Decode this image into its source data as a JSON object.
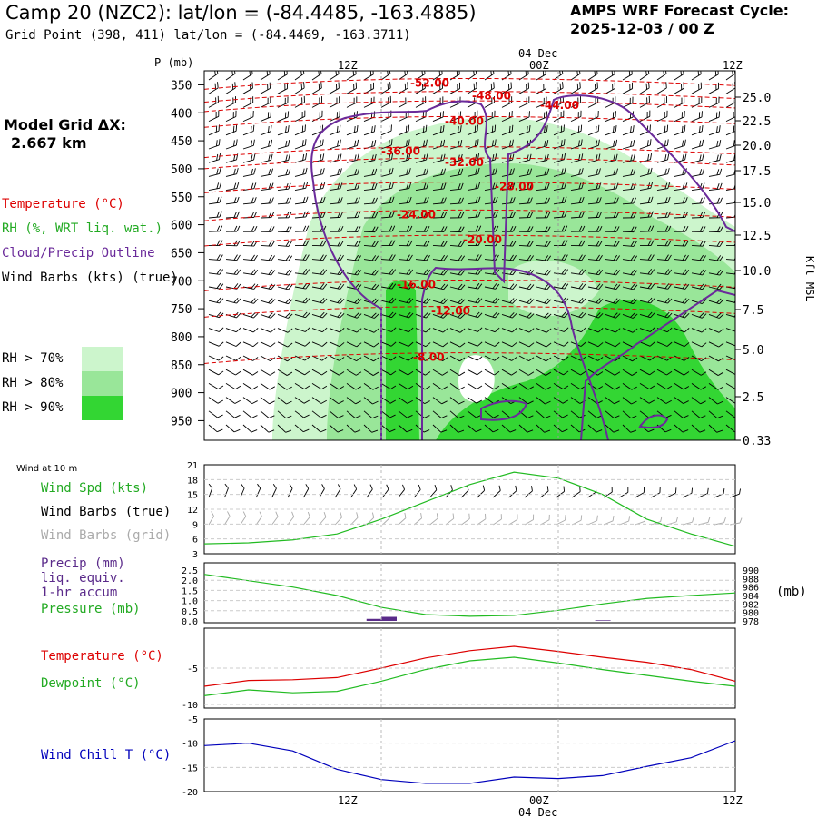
{
  "header": {
    "title": "Camp 20 (NZC2):  lat/lon = (-84.4485, -163.4885)",
    "subtitle": "Grid Point (398, 411) lat/lon = (-84.4469, -163.3711)",
    "cycle_label": "AMPS WRF Forecast Cycle:",
    "cycle_value": "2025-12-03 / 00  Z",
    "grid_dx_label": "Model Grid ΔX:",
    "grid_dx_value": "2.667 km"
  },
  "legend": {
    "temperature": "Temperature (°C)",
    "rh": "RH (%, WRT liq. wat.)",
    "cloud": "Cloud/Precip Outline",
    "wind": "Wind Barbs (kts) (true)",
    "rh70": "RH > 70%",
    "rh80": "RH > 80%",
    "rh90": "RH > 90%"
  },
  "colors": {
    "temperature": "#dd0000",
    "cloud": "#6a2a9a",
    "rh70": "#ccf5cc",
    "rh80": "#99e699",
    "rh90": "#33d633",
    "wind_speed": "#22bb22",
    "dewpoint": "#22bb22",
    "wind_chill": "#0000bb",
    "precip": "#5a2a8a",
    "grid_barbs": "#aaaaaa"
  },
  "time_axis": {
    "ticks": [
      "12Z",
      "00Z",
      "12Z"
    ],
    "date_label": "04 Dec"
  },
  "chart_data": [
    {
      "type": "contour",
      "name": "cross-section",
      "y_axis_label": "P (mb)",
      "y_right_label": "Kft MSL",
      "pressure_ticks": [
        "350",
        "400",
        "450",
        "500",
        "550",
        "600",
        "650",
        "700",
        "750",
        "800",
        "850",
        "900",
        "950"
      ],
      "height_ticks": [
        "25.0",
        "22.5",
        "20.0",
        "17.5",
        "15.0",
        "12.5",
        "10.0",
        "7.5",
        "5.0",
        "2.5",
        "0.33"
      ],
      "temperature_labels": [
        {
          "text": "-52.00",
          "p": 345
        },
        {
          "text": "-48.00",
          "p": 368
        },
        {
          "text": "-44.00",
          "p": 385
        },
        {
          "text": "-40.00",
          "p": 413
        },
        {
          "text": "-36.00",
          "p": 467
        },
        {
          "text": "-32.00",
          "p": 487
        },
        {
          "text": "-28.00",
          "p": 530
        },
        {
          "text": "-24.00",
          "p": 580
        },
        {
          "text": "-20.00",
          "p": 625
        },
        {
          "text": "-16.00",
          "p": 705
        },
        {
          "text": "-12.00",
          "p": 752
        },
        {
          "text": "-8.00",
          "p": 835
        }
      ]
    },
    {
      "type": "line",
      "name": "wind-10m",
      "panel_label": "Wind at 10 m",
      "series_label": "Wind Spd (kts)",
      "barbs_true_label": "Wind Barbs (true)",
      "barbs_grid_label": "Wind Barbs (grid)",
      "y_ticks": [
        "21",
        "18",
        "15",
        "12",
        "9",
        "6",
        "3"
      ],
      "ylim": [
        3,
        21
      ],
      "x_hours": [
        0,
        3,
        6,
        9,
        12,
        15,
        18,
        21,
        24,
        27,
        30,
        33,
        36
      ],
      "values": [
        5,
        5.2,
        5.8,
        7,
        10,
        13.5,
        17,
        19.5,
        18.3,
        15,
        10,
        7,
        4.5
      ]
    },
    {
      "type": "bar+line",
      "name": "precip-pressure",
      "precip_label": "Precip (mm)",
      "precip_label2": "liq. equiv.",
      "precip_label3": "1-hr accum",
      "pressure_label": "Pressure (mb)",
      "pressure_unit": "(mb)",
      "y_left_ticks": [
        "2.5",
        "2.0",
        "1.5",
        "1.0",
        "0.5",
        "0.0"
      ],
      "y_right_ticks": [
        "990",
        "988",
        "986",
        "984",
        "982",
        "980",
        "978"
      ],
      "precip_bars": [
        {
          "hour": 11,
          "value": 0.1
        },
        {
          "hour": 12,
          "value": 0.2
        },
        {
          "hour": 26.5,
          "value": 0.03
        }
      ],
      "x_hours": [
        0,
        3,
        6,
        9,
        12,
        15,
        18,
        21,
        24,
        27,
        30,
        33,
        36
      ],
      "pressure": [
        989,
        987.5,
        986,
        984,
        981.2,
        979.5,
        979.1,
        979.3,
        980.5,
        982,
        983.3,
        984,
        984.6
      ]
    },
    {
      "type": "line",
      "name": "temperature-dewpoint",
      "temp_label": "Temperature (°C)",
      "dew_label": "Dewpoint (°C)",
      "y_ticks": [
        "-5",
        "-10"
      ],
      "ylim": [
        -10.5,
        0.5
      ],
      "x_hours": [
        0,
        3,
        6,
        9,
        12,
        15,
        18,
        21,
        24,
        27,
        30,
        33,
        36
      ],
      "temperature": [
        -7.5,
        -6.7,
        -6.6,
        -6.3,
        -5,
        -3.6,
        -2.6,
        -2,
        -2.7,
        -3.5,
        -4.2,
        -5.2,
        -6.8
      ],
      "dewpoint": [
        -8.8,
        -8,
        -8.4,
        -8.2,
        -6.8,
        -5.2,
        -4,
        -3.5,
        -4.3,
        -5.2,
        -6,
        -6.8,
        -7.5
      ]
    },
    {
      "type": "line",
      "name": "wind-chill",
      "series_label": "Wind Chill T (°C)",
      "y_ticks": [
        "-5",
        "-10",
        "-15",
        "-20"
      ],
      "ylim": [
        -20,
        -5
      ],
      "x_hours": [
        0,
        3,
        6,
        9,
        12,
        15,
        18,
        21,
        24,
        27,
        30,
        33,
        36
      ],
      "values": [
        -10.5,
        -10,
        -11.6,
        -15.4,
        -17.5,
        -18.3,
        -18.3,
        -17,
        -17.3,
        -16.7,
        -14.8,
        -13,
        -9.5
      ]
    }
  ]
}
